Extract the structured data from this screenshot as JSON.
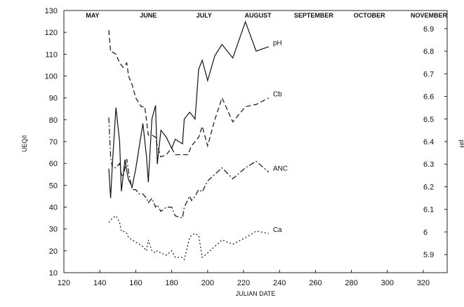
{
  "chart_data": {
    "type": "line",
    "xlabel": "JULIAN DATE",
    "ylabel": "UEQ/l",
    "y2label": "pH",
    "xlim": [
      120,
      330
    ],
    "ylim": [
      10,
      130
    ],
    "y2lim": [
      5.82,
      6.98
    ],
    "xticks": [
      "120",
      "140",
      "160",
      "180",
      "200",
      "220",
      "240",
      "260",
      "280",
      "300",
      "320"
    ],
    "yticks": [
      "10",
      "20",
      "30",
      "40",
      "50",
      "60",
      "70",
      "80",
      "90",
      "100",
      "110",
      "120",
      "130"
    ],
    "y2ticks": [
      "5.9",
      "6",
      "6.1",
      "6.2",
      "6.3",
      "6.4",
      "6.5",
      "6.6",
      "6.7",
      "6.8",
      "6.9"
    ],
    "months": [
      {
        "name": "MAY",
        "x": 136
      },
      {
        "name": "JUNE",
        "x": 167
      },
      {
        "name": "JULY",
        "x": 198
      },
      {
        "name": "AUGUST",
        "x": 228
      },
      {
        "name": "SEPTEMBER",
        "x": 259
      },
      {
        "name": "OCTOBER",
        "x": 290
      },
      {
        "name": "NOVEMBER",
        "x": 320
      }
    ],
    "grid": false,
    "series": [
      {
        "name": "pH",
        "axis": "right",
        "dash": "solid",
        "x": [
          145,
          146,
          147,
          149,
          151,
          152,
          153,
          154,
          155,
          156,
          158,
          160,
          162,
          164,
          166,
          167,
          169,
          171,
          172,
          174,
          177,
          180,
          182,
          186,
          187,
          190,
          191,
          193,
          195,
          197,
          200,
          204,
          208,
          214,
          221,
          227,
          234
        ],
        "y": [
          6.28,
          6.15,
          6.3,
          6.55,
          6.4,
          6.18,
          6.25,
          6.32,
          6.27,
          6.23,
          6.2,
          6.28,
          6.38,
          6.48,
          6.33,
          6.22,
          6.5,
          6.56,
          6.3,
          6.45,
          6.42,
          6.37,
          6.41,
          6.39,
          6.5,
          6.53,
          6.52,
          6.5,
          6.72,
          6.76,
          6.67,
          6.78,
          6.83,
          6.77,
          6.93,
          6.8,
          6.82
        ]
      },
      {
        "name": "Cb",
        "axis": "left",
        "dash": "dashed",
        "x": [
          145,
          146,
          147,
          149,
          151,
          153,
          155,
          156,
          158,
          160,
          163,
          165,
          167,
          169,
          171,
          172,
          174,
          177,
          180,
          182,
          186,
          189,
          191,
          193,
          195,
          197,
          200,
          204,
          208,
          214,
          221,
          227,
          234
        ],
        "y": [
          121,
          111,
          111,
          110,
          106,
          104,
          106,
          100,
          96,
          90,
          86,
          86,
          73,
          73,
          72,
          68,
          63,
          64,
          67,
          64,
          64,
          64,
          68,
          70,
          72,
          77,
          68,
          80,
          90,
          79,
          86,
          87,
          90
        ]
      },
      {
        "name": "ANC",
        "axis": "left",
        "dash": "dashdot",
        "x": [
          145,
          146,
          147,
          149,
          151,
          152,
          153,
          155,
          156,
          158,
          160,
          162,
          164,
          166,
          167,
          169,
          171,
          172,
          174,
          177,
          180,
          182,
          186,
          187,
          190,
          191,
          193,
          195,
          197,
          200,
          204,
          208,
          214,
          221,
          227,
          234
        ],
        "y": [
          81,
          63,
          58,
          58,
          60,
          55,
          54,
          62,
          56,
          48,
          48,
          46,
          46,
          44,
          42,
          44,
          40,
          41,
          38,
          40,
          40,
          36,
          35,
          40,
          45,
          43,
          45,
          48,
          47,
          52,
          55,
          58,
          53,
          58,
          61,
          56
        ]
      },
      {
        "name": "Ca",
        "axis": "left",
        "dash": "dotted",
        "x": [
          145,
          146,
          147,
          149,
          151,
          152,
          153,
          155,
          156,
          158,
          160,
          162,
          164,
          166,
          167,
          169,
          171,
          172,
          174,
          177,
          180,
          182,
          186,
          187,
          190,
          191,
          193,
          195,
          197,
          200,
          204,
          208,
          214,
          221,
          227,
          234
        ],
        "y": [
          33,
          34,
          35,
          36,
          33,
          29,
          29,
          28,
          26,
          25,
          24,
          23,
          22,
          20,
          25,
          20,
          19,
          20,
          19,
          18,
          20,
          17,
          17,
          16,
          26,
          27,
          28,
          27,
          17,
          19,
          22,
          25,
          23,
          26,
          29,
          28
        ]
      }
    ]
  }
}
